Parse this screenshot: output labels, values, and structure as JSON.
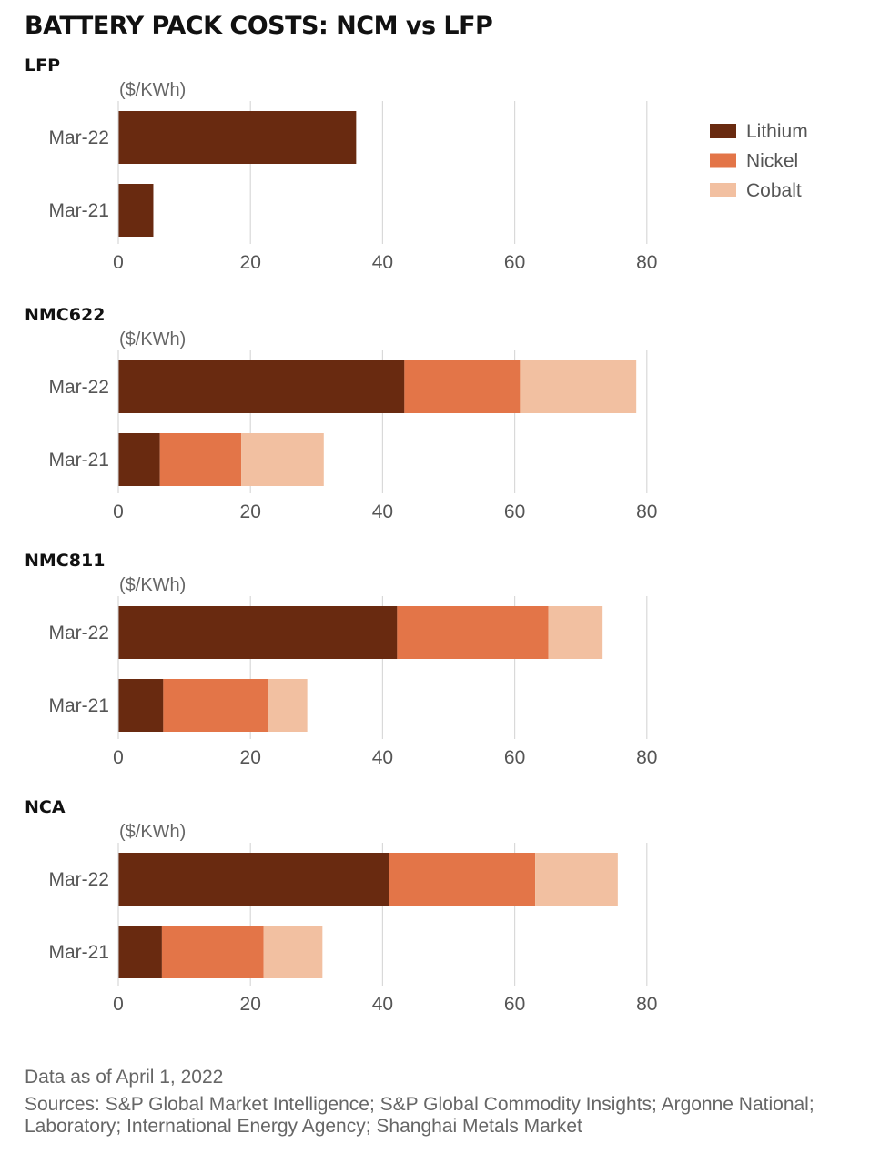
{
  "title": "BATTERY PACK COSTS: NCM vs LFP",
  "colors": {
    "Lithium": "#692a10",
    "Nickel": "#e37548",
    "Cobalt": "#f2c0a1"
  },
  "legend": [
    "Lithium",
    "Nickel",
    "Cobalt"
  ],
  "footer": {
    "note": "Data as of April 1, 2022",
    "sources": "Sources: S&P Global Market Intelligence; S&P Global Commodity Insights; Argonne National; Laboratory; International Energy Agency; Shanghai Metals Market"
  },
  "chart_data": [
    {
      "type": "bar",
      "orientation": "horizontal",
      "stacked": true,
      "title": "LFP",
      "ylabel": "($/KWh)",
      "categories": [
        "Mar-22",
        "Mar-21"
      ],
      "series": [
        {
          "name": "Lithium",
          "values": [
            36,
            5.3
          ]
        },
        {
          "name": "Nickel",
          "values": [
            0,
            0
          ]
        },
        {
          "name": "Cobalt",
          "values": [
            0,
            0
          ]
        }
      ],
      "xlim": [
        0,
        80
      ],
      "xticks": [
        0,
        20,
        40,
        60,
        80
      ]
    },
    {
      "type": "bar",
      "orientation": "horizontal",
      "stacked": true,
      "title": "NMC622",
      "ylabel": "($/KWh)",
      "categories": [
        "Mar-22",
        "Mar-21"
      ],
      "series": [
        {
          "name": "Lithium",
          "values": [
            43.3,
            6.3
          ]
        },
        {
          "name": "Nickel",
          "values": [
            17.5,
            12.3
          ]
        },
        {
          "name": "Cobalt",
          "values": [
            17.6,
            12.5
          ]
        }
      ],
      "xlim": [
        0,
        80
      ],
      "xticks": [
        0,
        20,
        40,
        60,
        80
      ]
    },
    {
      "type": "bar",
      "orientation": "horizontal",
      "stacked": true,
      "title": "NMC811",
      "ylabel": "($/KWh)",
      "categories": [
        "Mar-22",
        "Mar-21"
      ],
      "series": [
        {
          "name": "Lithium",
          "values": [
            42.2,
            6.8
          ]
        },
        {
          "name": "Nickel",
          "values": [
            22.9,
            15.9
          ]
        },
        {
          "name": "Cobalt",
          "values": [
            8.2,
            5.9
          ]
        }
      ],
      "xlim": [
        0,
        80
      ],
      "xticks": [
        0,
        20,
        40,
        60,
        80
      ]
    },
    {
      "type": "bar",
      "orientation": "horizontal",
      "stacked": true,
      "title": "NCA",
      "ylabel": "($/KWh)",
      "categories": [
        "Mar-22",
        "Mar-21"
      ],
      "series": [
        {
          "name": "Lithium",
          "values": [
            41,
            6.6
          ]
        },
        {
          "name": "Nickel",
          "values": [
            22.1,
            15.4
          ]
        },
        {
          "name": "Cobalt",
          "values": [
            12.5,
            8.9
          ]
        }
      ],
      "xlim": [
        0,
        80
      ],
      "xticks": [
        0,
        20,
        40,
        60,
        80
      ]
    }
  ]
}
